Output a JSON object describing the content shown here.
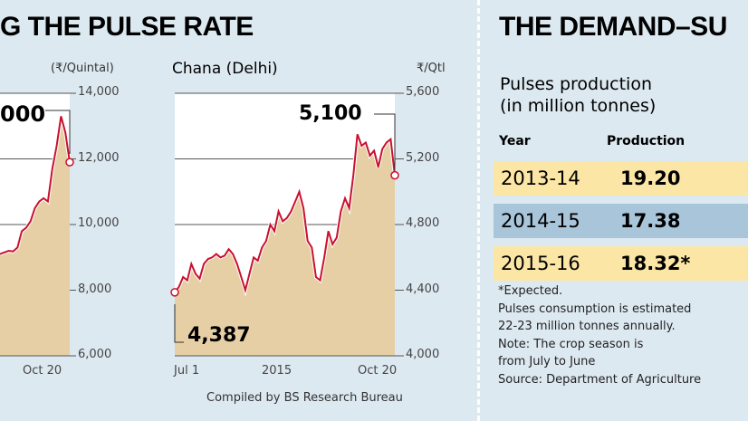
{
  "headers": {
    "left_title": "G THE PULSE RATE",
    "right_title": "THE DEMAND–SU"
  },
  "chart_data": [
    {
      "type": "area",
      "partial": true,
      "ylabel": "(₹/Quintal)",
      "ylim": [
        6000,
        14000
      ],
      "yticks": [
        "14,000",
        "12,000",
        "10,000",
        "8,000",
        "6,000"
      ],
      "xticks": [
        "Oct 20"
      ],
      "annotation": "000",
      "values": [
        9100,
        9150,
        9200,
        9180,
        9300,
        9800,
        9900,
        10100,
        10500,
        10700,
        10800,
        10700,
        11700,
        12400,
        13300,
        12800,
        11900
      ],
      "colors": {
        "line": "#c8102e",
        "fill": "#e6cfa4"
      }
    },
    {
      "type": "area",
      "title": "Chana (Delhi)",
      "ylabel": "₹/Qtl",
      "ylim": [
        4000,
        5600
      ],
      "yticks": [
        "5,600",
        "5,200",
        "4,800",
        "4,400",
        "4,000"
      ],
      "xticks": [
        "Jul 1",
        "2015",
        "Oct 20"
      ],
      "annotations": {
        "start": "4,387",
        "end": "5,100"
      },
      "values": [
        4387,
        4420,
        4480,
        4460,
        4560,
        4500,
        4470,
        4560,
        4590,
        4600,
        4620,
        4600,
        4610,
        4650,
        4620,
        4560,
        4480,
        4400,
        4500,
        4600,
        4580,
        4660,
        4700,
        4800,
        4760,
        4880,
        4820,
        4840,
        4880,
        4940,
        5000,
        4900,
        4700,
        4660,
        4480,
        4460,
        4600,
        4760,
        4680,
        4720,
        4880,
        4960,
        4900,
        5100,
        5350,
        5280,
        5300,
        5220,
        5250,
        5150,
        5260,
        5300,
        5320,
        5100
      ],
      "colors": {
        "line": "#c8102e",
        "fill": "#e6cfa4"
      }
    }
  ],
  "table": {
    "subtitle1": "Pulses production",
    "subtitle2": "(in million tonnes)",
    "col_year": "Year",
    "col_production": "Production",
    "rows": [
      {
        "year": "2013-14",
        "value": "19.20"
      },
      {
        "year": "2014-15",
        "value": "17.38"
      },
      {
        "year": "2015-16",
        "value": "18.32*"
      }
    ],
    "row_colors": [
      "#fbe6a6",
      "#a9c5d9",
      "#fbe6a6"
    ]
  },
  "notes": [
    "*Expected.",
    "Pulses consumption is estimated",
    "22-23 million tonnes annually.",
    "Note: The crop season is",
    "from July to June",
    "Source: Department of Agriculture"
  ],
  "credit": "Compiled by BS Research Bureau"
}
